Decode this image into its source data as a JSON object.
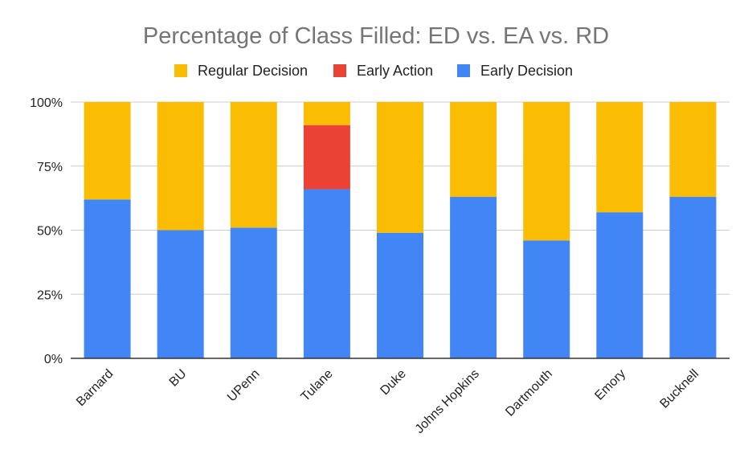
{
  "chart_data": {
    "type": "bar",
    "stacked": true,
    "normalized": true,
    "title": "Percentage of Class Filled: ED vs. EA vs. RD",
    "xlabel": "",
    "ylabel": "",
    "ylim": [
      0,
      100
    ],
    "yticks": [
      {
        "value": 0,
        "label": "0%"
      },
      {
        "value": 25,
        "label": "25%"
      },
      {
        "value": 50,
        "label": "50%"
      },
      {
        "value": 75,
        "label": "75%"
      },
      {
        "value": 100,
        "label": "100%"
      }
    ],
    "grid": true,
    "legend_position": "top",
    "legend_order": [
      "Regular Decision",
      "Early Action",
      "Early Decision"
    ],
    "categories": [
      "Barnard",
      "BU",
      "UPenn",
      "Tulane",
      "Duke",
      "Johns Hopkins",
      "Dartmouth",
      "Emory",
      "Bucknell"
    ],
    "series": [
      {
        "name": "Early Decision",
        "color": "#4285f4",
        "values": [
          62,
          50,
          51,
          66,
          49,
          63,
          46,
          57,
          63
        ]
      },
      {
        "name": "Early Action",
        "color": "#ea4335",
        "values": [
          0,
          0,
          0,
          25,
          0,
          0,
          0,
          0,
          0
        ]
      },
      {
        "name": "Regular Decision",
        "color": "#fbbc04",
        "values": [
          38,
          50,
          49,
          9,
          51,
          37,
          54,
          43,
          37
        ]
      }
    ]
  }
}
